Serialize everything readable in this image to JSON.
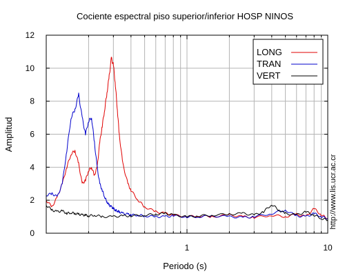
{
  "chart_data": {
    "type": "line",
    "title": "Cociente espectral piso superior/inferior  HOSP NINOS",
    "xlabel": "Periodo (s)",
    "ylabel": "Amplitud",
    "credit": "http://www.lis.ucr.ac.cr",
    "x_scale": "log",
    "xlim": [
      0.1,
      10
    ],
    "ylim": [
      0,
      12
    ],
    "x_tick_labels": [
      "1",
      "10"
    ],
    "y_ticks": [
      0,
      2,
      4,
      6,
      8,
      10,
      12
    ],
    "grid": true,
    "legend_position": "top-right",
    "series": [
      {
        "name": "LONG",
        "color": "#e00000",
        "x": [
          0.1,
          0.11,
          0.12,
          0.13,
          0.14,
          0.15,
          0.16,
          0.17,
          0.18,
          0.19,
          0.2,
          0.21,
          0.22,
          0.23,
          0.24,
          0.25,
          0.26,
          0.27,
          0.28,
          0.29,
          0.3,
          0.31,
          0.32,
          0.33,
          0.35,
          0.38,
          0.4,
          0.45,
          0.5,
          0.6,
          0.7,
          0.8,
          1,
          1.2,
          1.5,
          2,
          2.5,
          3,
          4,
          5,
          6,
          7,
          8,
          9,
          10
        ],
        "y": [
          2.0,
          1.6,
          2.2,
          3.0,
          4.0,
          4.8,
          5.0,
          4.2,
          3.0,
          3.2,
          3.8,
          4.0,
          3.5,
          4.0,
          5.5,
          6.5,
          7.5,
          8.5,
          9.5,
          10.6,
          10.2,
          9.0,
          7.5,
          6.0,
          4.2,
          3.0,
          2.6,
          2.0,
          1.6,
          1.3,
          1.2,
          1.1,
          1.0,
          1.05,
          1.0,
          1.1,
          1.0,
          0.95,
          1.1,
          1.0,
          1.15,
          1.0,
          1.5,
          1.1,
          0.9
        ]
      },
      {
        "name": "TRAN",
        "color": "#0000cc",
        "x": [
          0.1,
          0.11,
          0.12,
          0.13,
          0.14,
          0.15,
          0.16,
          0.17,
          0.18,
          0.19,
          0.2,
          0.21,
          0.22,
          0.23,
          0.24,
          0.25,
          0.26,
          0.27,
          0.28,
          0.29,
          0.3,
          0.31,
          0.32,
          0.33,
          0.35,
          0.38,
          0.4,
          0.45,
          0.5,
          0.6,
          0.7,
          0.8,
          1,
          1.2,
          1.5,
          2,
          2.5,
          3,
          4,
          5,
          6,
          7,
          8,
          9,
          10
        ],
        "y": [
          2.3,
          2.4,
          2.2,
          3.0,
          5.0,
          7.0,
          7.5,
          8.4,
          7.0,
          6.0,
          6.8,
          7.0,
          5.5,
          4.0,
          3.0,
          2.6,
          2.2,
          1.9,
          1.7,
          1.6,
          1.5,
          1.4,
          1.35,
          1.3,
          1.2,
          1.15,
          1.1,
          1.1,
          1.05,
          1.0,
          1.0,
          1.05,
          1.0,
          1.0,
          1.05,
          1.0,
          0.95,
          1.0,
          1.2,
          1.4,
          1.05,
          1.0,
          1.2,
          1.0,
          0.9
        ]
      },
      {
        "name": "VERT",
        "color": "#000000",
        "x": [
          0.1,
          0.11,
          0.12,
          0.13,
          0.14,
          0.15,
          0.16,
          0.17,
          0.18,
          0.19,
          0.2,
          0.22,
          0.25,
          0.3,
          0.35,
          0.4,
          0.5,
          0.6,
          0.7,
          0.8,
          1,
          1.2,
          1.5,
          2,
          2.5,
          3,
          3.5,
          4,
          4.5,
          5,
          6,
          7,
          8,
          9,
          10
        ],
        "y": [
          1.7,
          1.4,
          1.3,
          1.35,
          1.2,
          1.25,
          1.2,
          1.15,
          1.1,
          1.1,
          1.05,
          1.1,
          1.0,
          1.0,
          1.05,
          1.05,
          1.1,
          1.15,
          1.2,
          1.1,
          1.0,
          1.05,
          1.1,
          1.15,
          1.2,
          1.1,
          1.3,
          1.75,
          1.4,
          1.2,
          1.1,
          1.3,
          1.1,
          0.9,
          0.8
        ]
      }
    ]
  }
}
